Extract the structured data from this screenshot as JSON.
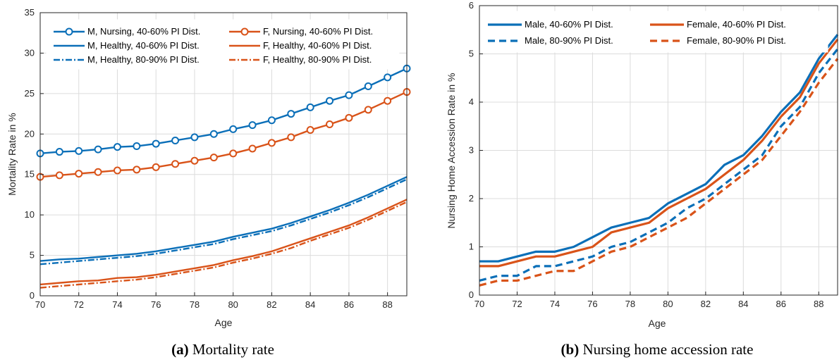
{
  "colors": {
    "blue": "#0b6fb8",
    "orange": "#d95319"
  },
  "figure": {
    "caption_a_label": "(a)",
    "caption_a_text": "Mortality rate",
    "caption_b_label": "(b)",
    "caption_b_text": "Nursing home accession rate"
  },
  "chart_data": [
    {
      "type": "line",
      "title": "",
      "xlabel": "Age",
      "ylabel": "Mortality Rate in %",
      "xlim": [
        70,
        89
      ],
      "ylim": [
        0,
        35
      ],
      "xticks": [
        70,
        72,
        74,
        76,
        78,
        80,
        82,
        84,
        86,
        88
      ],
      "yticks": [
        0,
        5,
        10,
        15,
        20,
        25,
        30,
        35
      ],
      "grid": true,
      "legend_position": "top-left",
      "legend_columns": 2,
      "x": [
        70,
        71,
        72,
        73,
        74,
        75,
        76,
        77,
        78,
        79,
        80,
        81,
        82,
        83,
        84,
        85,
        86,
        87,
        88,
        89
      ],
      "series": [
        {
          "name": "M, Nursing, 40-60% PI Dist.",
          "color": "blue",
          "style": "solid-marker",
          "values": [
            17.6,
            17.8,
            17.9,
            18.1,
            18.4,
            18.5,
            18.8,
            19.2,
            19.6,
            20.0,
            20.6,
            21.1,
            21.7,
            22.5,
            23.3,
            24.1,
            24.8,
            25.9,
            27.0,
            28.1
          ]
        },
        {
          "name": "F, Nursing, 40-60% PI Dist.",
          "color": "orange",
          "style": "solid-marker",
          "values": [
            14.7,
            14.9,
            15.1,
            15.3,
            15.5,
            15.6,
            15.9,
            16.3,
            16.7,
            17.1,
            17.6,
            18.2,
            18.9,
            19.6,
            20.5,
            21.2,
            22.0,
            23.0,
            24.1,
            25.2
          ]
        },
        {
          "name": "M, Healthy, 40-60% PI Dist.",
          "color": "blue",
          "style": "solid",
          "values": [
            4.3,
            4.5,
            4.6,
            4.8,
            5.0,
            5.2,
            5.5,
            5.9,
            6.3,
            6.7,
            7.3,
            7.8,
            8.3,
            9.0,
            9.8,
            10.6,
            11.5,
            12.5,
            13.6,
            14.7
          ]
        },
        {
          "name": "M, Healthy, 80-90% PI Dist.",
          "color": "blue",
          "style": "dashdot",
          "values": [
            3.9,
            4.1,
            4.3,
            4.5,
            4.7,
            4.9,
            5.2,
            5.6,
            6.0,
            6.4,
            7.0,
            7.5,
            8.0,
            8.7,
            9.5,
            10.3,
            11.2,
            12.2,
            13.3,
            14.4
          ]
        },
        {
          "name": "F, Healthy, 40-60% PI Dist.",
          "color": "orange",
          "style": "solid",
          "values": [
            1.4,
            1.6,
            1.8,
            1.9,
            2.2,
            2.3,
            2.6,
            3.0,
            3.4,
            3.8,
            4.4,
            4.9,
            5.5,
            6.3,
            7.1,
            7.9,
            8.7,
            9.7,
            10.8,
            11.9
          ]
        },
        {
          "name": "F, Healthy, 80-90% PI Dist.",
          "color": "orange",
          "style": "dashdot",
          "values": [
            1.0,
            1.2,
            1.4,
            1.6,
            1.8,
            2.0,
            2.3,
            2.7,
            3.1,
            3.5,
            4.1,
            4.6,
            5.2,
            5.9,
            6.8,
            7.6,
            8.4,
            9.4,
            10.5,
            11.6
          ]
        }
      ]
    },
    {
      "type": "line",
      "title": "",
      "xlabel": "Age",
      "ylabel": "Nursing Home Accession Rate in %",
      "xlim": [
        70,
        89
      ],
      "ylim": [
        0,
        6
      ],
      "xticks": [
        70,
        72,
        74,
        76,
        78,
        80,
        82,
        84,
        86,
        88
      ],
      "yticks": [
        0,
        1,
        2,
        3,
        4,
        5,
        6
      ],
      "grid": true,
      "legend_position": "top-left",
      "legend_columns": 2,
      "x": [
        70,
        71,
        72,
        73,
        74,
        75,
        76,
        77,
        78,
        79,
        80,
        81,
        82,
        83,
        84,
        85,
        86,
        87,
        88,
        89
      ],
      "series": [
        {
          "name": "Male, 40-60% PI Dist.",
          "color": "blue",
          "style": "solid",
          "values": [
            0.7,
            0.7,
            0.8,
            0.9,
            0.9,
            1.0,
            1.2,
            1.4,
            1.5,
            1.6,
            1.9,
            2.1,
            2.3,
            2.7,
            2.9,
            3.3,
            3.8,
            4.2,
            4.9,
            5.4
          ]
        },
        {
          "name": "Female, 40-60% PI Dist.",
          "color": "orange",
          "style": "solid",
          "values": [
            0.6,
            0.6,
            0.7,
            0.8,
            0.8,
            0.9,
            1.0,
            1.3,
            1.4,
            1.5,
            1.8,
            2.0,
            2.2,
            2.5,
            2.8,
            3.2,
            3.7,
            4.1,
            4.8,
            5.3
          ]
        },
        {
          "name": "Male, 80-90% PI Dist.",
          "color": "blue",
          "style": "dashed",
          "values": [
            0.3,
            0.4,
            0.4,
            0.6,
            0.6,
            0.7,
            0.8,
            1.0,
            1.1,
            1.3,
            1.5,
            1.8,
            2.0,
            2.3,
            2.6,
            2.9,
            3.5,
            3.9,
            4.6,
            5.1
          ]
        },
        {
          "name": "Female, 80-90% PI Dist.",
          "color": "orange",
          "style": "dashed",
          "values": [
            0.2,
            0.3,
            0.3,
            0.4,
            0.5,
            0.5,
            0.7,
            0.9,
            1.0,
            1.2,
            1.4,
            1.6,
            1.9,
            2.2,
            2.5,
            2.8,
            3.3,
            3.8,
            4.4,
            4.9
          ]
        }
      ]
    }
  ]
}
